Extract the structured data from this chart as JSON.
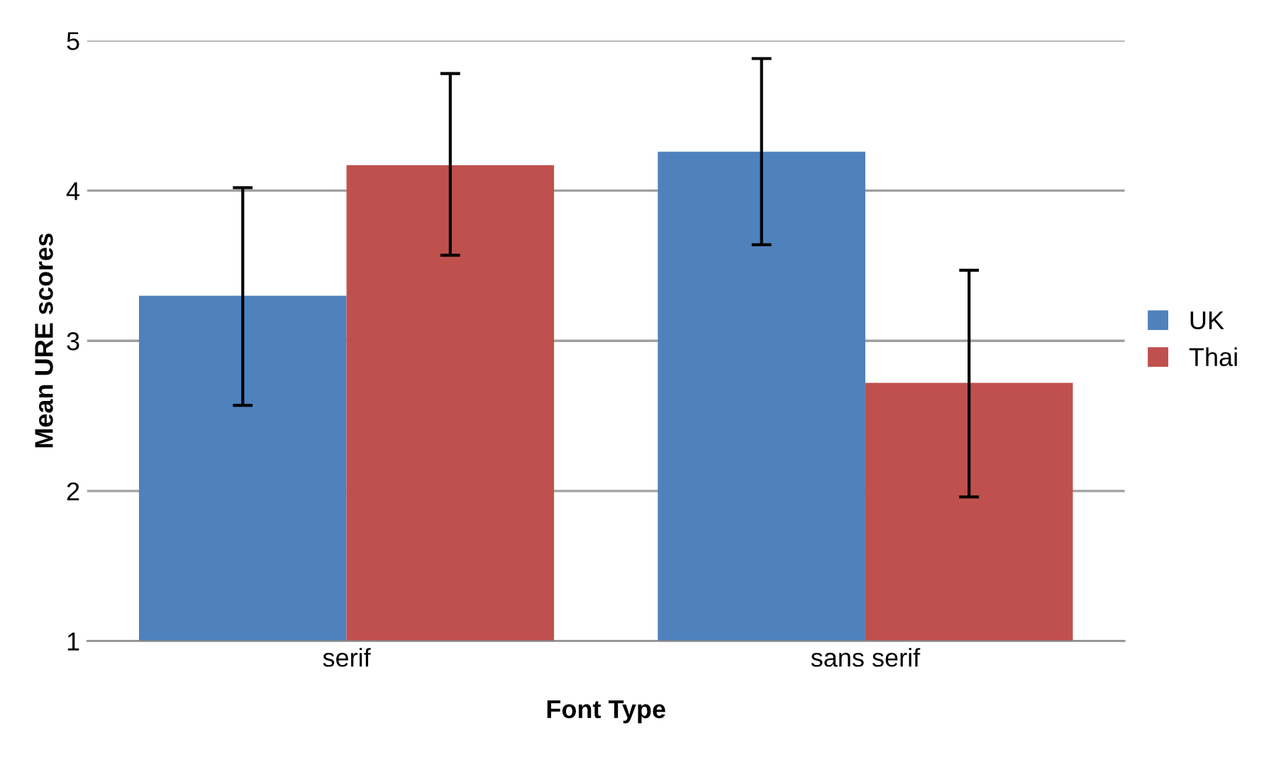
{
  "chart_data": {
    "type": "bar",
    "xlabel": "Font Type",
    "ylabel": "Mean URE scores",
    "categories": [
      "serif",
      "sans serif"
    ],
    "series": [
      {
        "name": "UK",
        "color": "#4f81bd",
        "values": [
          3.3,
          4.26
        ],
        "errors": [
          [
            2.57,
            4.02
          ],
          [
            3.64,
            4.88
          ]
        ]
      },
      {
        "name": "Thai",
        "color": "#c0504d",
        "values": [
          4.17,
          2.72
        ],
        "errors": [
          [
            3.57,
            4.78
          ],
          [
            1.96,
            3.47
          ]
        ]
      }
    ],
    "ylim": [
      1,
      5
    ],
    "yticks": [
      1,
      2,
      3,
      4,
      5
    ],
    "grid": "y",
    "legend": "right"
  }
}
